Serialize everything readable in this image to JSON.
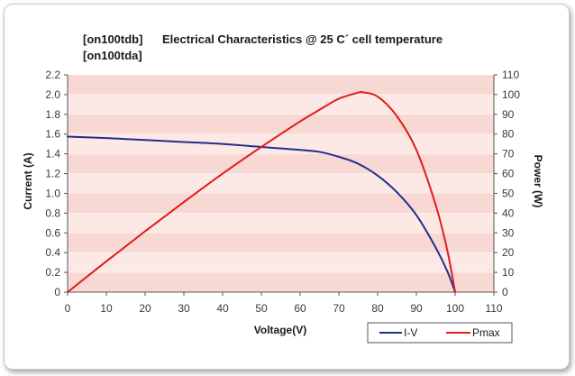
{
  "chart_data": {
    "type": "line",
    "title": "Electrical Characteristics @ 25 C´ cell temperature",
    "model_codes": [
      "[on100tdb]",
      "[on100tda]"
    ],
    "xlabel": "Voltage(V)",
    "ylabel": "Current (A)",
    "y2label": "Power (W)",
    "xlim": [
      0,
      110
    ],
    "ylim": [
      0,
      2.2
    ],
    "y2lim": [
      0,
      110
    ],
    "x_ticks": [
      "0",
      "10",
      "20",
      "30",
      "40",
      "50",
      "60",
      "70",
      "80",
      "90",
      "100",
      "110"
    ],
    "y_ticks": [
      "0",
      "0.2",
      "0.4",
      "0.6",
      "0.8",
      "1.0",
      "1.2",
      "1.4",
      "1.6",
      "1.8",
      "2.0",
      "2.2"
    ],
    "y2_ticks": [
      "0",
      "10",
      "20",
      "30",
      "40",
      "50",
      "60",
      "70",
      "80",
      "90",
      "100",
      "110"
    ],
    "grid": true,
    "legend_position": "bottom-right",
    "colors": {
      "band_light": "#fce9e6",
      "band_dark": "#f8d8d3",
      "iv": "#1f2f8c",
      "pmax": "#e01b1b"
    },
    "series": [
      {
        "name": "I-V",
        "axis": "left",
        "x": [
          0,
          10,
          20,
          30,
          40,
          50,
          60,
          65,
          70,
          75,
          80,
          85,
          90,
          95,
          98,
          100
        ],
        "y": [
          1.575,
          1.56,
          1.54,
          1.52,
          1.5,
          1.47,
          1.44,
          1.42,
          1.37,
          1.3,
          1.18,
          1.01,
          0.78,
          0.45,
          0.21,
          0.0
        ]
      },
      {
        "name": "Pmax",
        "axis": "right",
        "x": [
          0,
          10,
          20,
          30,
          40,
          50,
          60,
          65,
          70,
          75,
          76,
          80,
          85,
          90,
          95,
          98,
          100
        ],
        "y": [
          0,
          15.6,
          30.8,
          45.6,
          60.0,
          73.5,
          86.4,
          92.3,
          97.9,
          101.0,
          101.2,
          99.0,
          89.0,
          72.0,
          44.0,
          21.0,
          0
        ]
      }
    ]
  }
}
